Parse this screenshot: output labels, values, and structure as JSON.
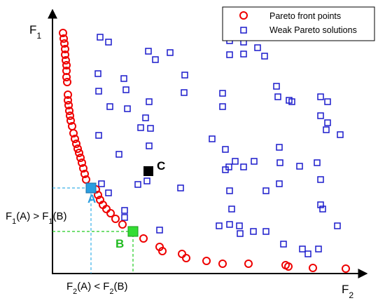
{
  "axes": {
    "y_label": [
      "F",
      "1"
    ],
    "x_label": [
      "F",
      "2"
    ]
  },
  "comparisons": {
    "f1": [
      "F",
      "1",
      "(A) > F",
      "1",
      "(B)"
    ],
    "f2": [
      "F",
      "2",
      "(A) < F",
      "2",
      "(B)"
    ]
  },
  "legend": {
    "pareto": "Pareto front points",
    "weak": "Weak Pareto solutions"
  },
  "points": {
    "a": "A",
    "b": "B",
    "c": "C"
  }
}
